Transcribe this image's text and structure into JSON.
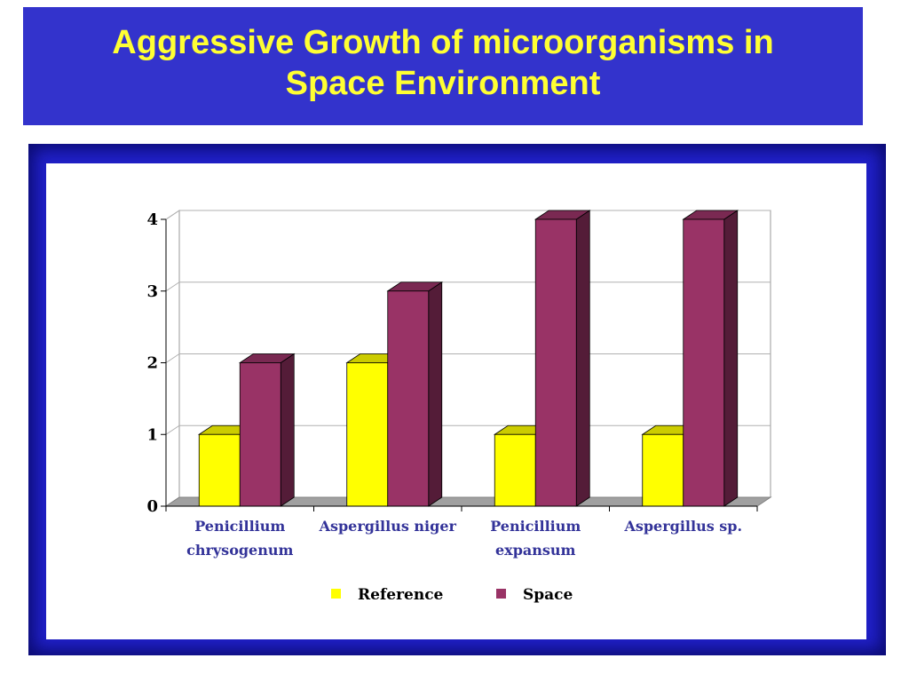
{
  "slide": {
    "title_line1": "Aggressive Growth of microorganisms in",
    "title_line2": "Space Environment"
  },
  "colors": {
    "title_bg": "#3333cc",
    "title_text": "#ffff33",
    "frame": "#2020c8",
    "reference": "#ffff00",
    "space": "#993366"
  },
  "chart_data": {
    "type": "bar",
    "title": "",
    "xlabel": "",
    "ylabel": "",
    "categories": [
      [
        "Penicillium",
        "chrysogenum"
      ],
      [
        "Aspergillus niger"
      ],
      [
        "Penicillium",
        "expansum"
      ],
      [
        "Aspergillus sp."
      ]
    ],
    "series": [
      {
        "name": "Reference",
        "color": "#ffff00",
        "values": [
          1,
          2,
          1,
          1
        ]
      },
      {
        "name": "Space",
        "color": "#993366",
        "values": [
          2,
          3,
          4,
          4
        ]
      }
    ],
    "ylim": [
      0,
      4
    ],
    "yticks": [
      "0",
      "1",
      "2",
      "3",
      "4"
    ],
    "grid": true,
    "legend": "bottom",
    "style": "3d-clustered"
  }
}
